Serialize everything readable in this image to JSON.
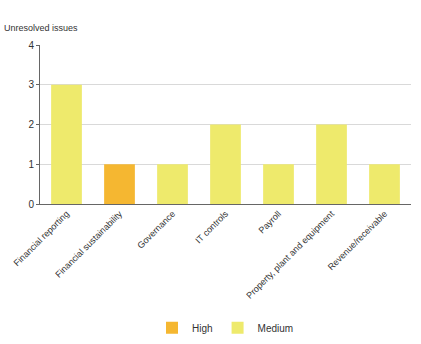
{
  "chart_data": {
    "type": "bar",
    "y_label": "Unresolved issues",
    "categories": [
      "Financial reporting",
      "Financial sustainability",
      "Governance",
      "IT controls",
      "Payroll",
      "Property, plant and equipment",
      "Revenue/receivable"
    ],
    "series": [
      {
        "name": "High",
        "color": "#f5b731",
        "values": [
          null,
          1,
          null,
          null,
          null,
          null,
          null
        ]
      },
      {
        "name": "Medium",
        "color": "#eeea6c",
        "values": [
          3,
          null,
          1,
          2,
          1,
          2,
          1
        ]
      }
    ],
    "ylim": [
      0,
      4
    ],
    "yticks": [
      0,
      1,
      2,
      3,
      4
    ],
    "grid": true,
    "legend": "bottom"
  }
}
